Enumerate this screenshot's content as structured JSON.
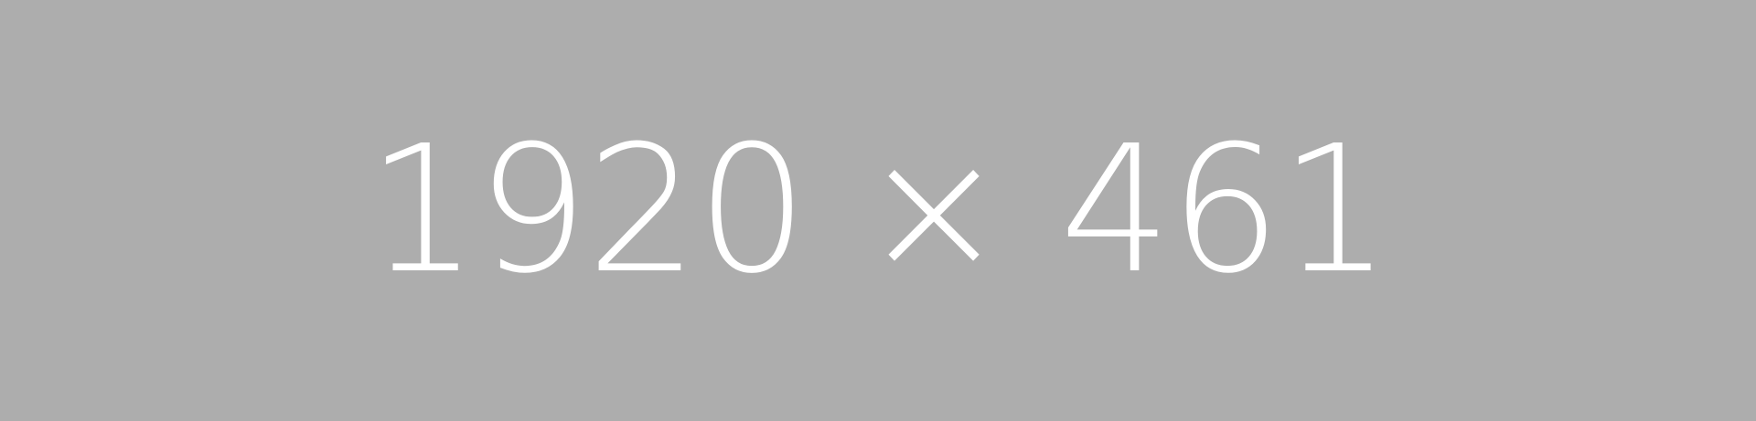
{
  "placeholder": {
    "label": "1920 × 461",
    "background_color": "#adadad",
    "text_color": "#ffffff"
  }
}
